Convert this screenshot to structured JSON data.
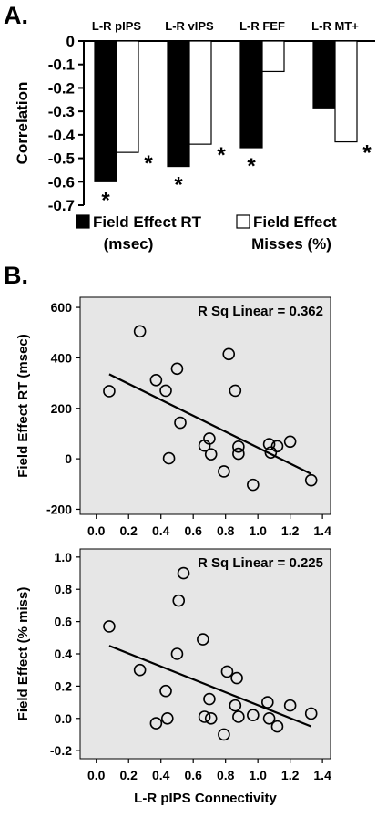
{
  "panel_labels": {
    "a": "A.",
    "b": "B."
  },
  "chart_data": [
    {
      "type": "bar",
      "title": "",
      "ylabel": "Correlation",
      "ylim": [
        -0.7,
        0
      ],
      "yticks": [
        0,
        -0.1,
        -0.2,
        -0.3,
        -0.4,
        -0.5,
        -0.6,
        -0.7
      ],
      "ytick_labels": [
        "0",
        "-0.1",
        "-0.2",
        "-0.3",
        "-0.4",
        "-0.5",
        "-0.6",
        "-0.7"
      ],
      "categories": [
        "L-R pIPS",
        "L-R vIPS",
        "L-R FEF",
        "L-R MT+"
      ],
      "series": [
        {
          "name": "Field Effect RT (msec)",
          "legend_lines": [
            "Field Effect RT",
            "(msec)"
          ],
          "color": "#000000",
          "values": [
            -0.6,
            -0.535,
            -0.455,
            -0.285
          ],
          "significant": [
            true,
            true,
            true,
            false
          ]
        },
        {
          "name": "Field Effect Misses (%)",
          "legend_lines": [
            "Field Effect",
            "Misses (%)"
          ],
          "color": "#ffffff",
          "values": [
            -0.475,
            -0.44,
            -0.13,
            -0.43
          ],
          "significant": [
            true,
            true,
            false,
            true
          ]
        }
      ],
      "sig_marker": "*",
      "legend": "bottom"
    },
    {
      "type": "scatter",
      "annotation": "R Sq Linear = 0.362",
      "ylabel": "Field Effect RT (msec)",
      "xlabel": "",
      "xlim": [
        -0.1,
        1.45
      ],
      "ylim": [
        -220,
        640
      ],
      "xticks": [
        0.0,
        0.2,
        0.4,
        0.6,
        0.8,
        1.0,
        1.2,
        1.4
      ],
      "xtick_labels": [
        "0.0",
        "0.2",
        "0.4",
        "0.6",
        "0.8",
        "1.0",
        "1.2",
        "1.4"
      ],
      "yticks": [
        600,
        400,
        200,
        0,
        -200
      ],
      "ytick_labels": [
        "600",
        "400",
        "200",
        "0",
        "-200"
      ],
      "points": [
        [
          0.08,
          268
        ],
        [
          0.27,
          505
        ],
        [
          0.37,
          312
        ],
        [
          0.43,
          270
        ],
        [
          0.45,
          2
        ],
        [
          0.5,
          357
        ],
        [
          0.52,
          143
        ],
        [
          0.67,
          52
        ],
        [
          0.7,
          80
        ],
        [
          0.71,
          18
        ],
        [
          0.79,
          -50
        ],
        [
          0.82,
          415
        ],
        [
          0.86,
          270
        ],
        [
          0.88,
          20
        ],
        [
          0.88,
          48
        ],
        [
          0.97,
          -103
        ],
        [
          1.07,
          58
        ],
        [
          1.08,
          25
        ],
        [
          1.12,
          50
        ],
        [
          1.2,
          68
        ],
        [
          1.33,
          -85
        ]
      ],
      "fit_line": {
        "x": [
          0.08,
          1.33
        ],
        "y": [
          335,
          -60
        ]
      }
    },
    {
      "type": "scatter",
      "annotation": "R Sq Linear = 0.225",
      "ylabel": "Field Effect (% miss)",
      "xlabel": "L-R pIPS Connectivity",
      "xlim": [
        -0.1,
        1.45
      ],
      "ylim": [
        -0.25,
        1.05
      ],
      "xticks": [
        0.0,
        0.2,
        0.4,
        0.6,
        0.8,
        1.0,
        1.2,
        1.4
      ],
      "xtick_labels": [
        "0.0",
        "0.2",
        "0.4",
        "0.6",
        "0.8",
        "1.0",
        "1.2",
        "1.4"
      ],
      "yticks": [
        1.0,
        0.8,
        0.6,
        0.4,
        0.2,
        0.0,
        -0.2
      ],
      "ytick_labels": [
        "1.0",
        "0.8",
        "0.6",
        "0.4",
        "0.2",
        "0.0",
        "-0.2"
      ],
      "points": [
        [
          0.08,
          0.57
        ],
        [
          0.27,
          0.3
        ],
        [
          0.37,
          -0.03
        ],
        [
          0.43,
          0.17
        ],
        [
          0.44,
          0.0
        ],
        [
          0.5,
          0.4
        ],
        [
          0.51,
          0.73
        ],
        [
          0.54,
          0.9
        ],
        [
          0.66,
          0.49
        ],
        [
          0.67,
          0.01
        ],
        [
          0.7,
          0.12
        ],
        [
          0.71,
          0.0
        ],
        [
          0.79,
          -0.1
        ],
        [
          0.81,
          0.29
        ],
        [
          0.86,
          0.08
        ],
        [
          0.87,
          0.25
        ],
        [
          0.88,
          0.01
        ],
        [
          0.97,
          0.02
        ],
        [
          1.06,
          0.1
        ],
        [
          1.07,
          0.0
        ],
        [
          1.12,
          -0.05
        ],
        [
          1.2,
          0.08
        ],
        [
          1.33,
          0.03
        ]
      ],
      "fit_line": {
        "x": [
          0.08,
          1.33
        ],
        "y": [
          0.45,
          -0.05
        ]
      }
    }
  ]
}
